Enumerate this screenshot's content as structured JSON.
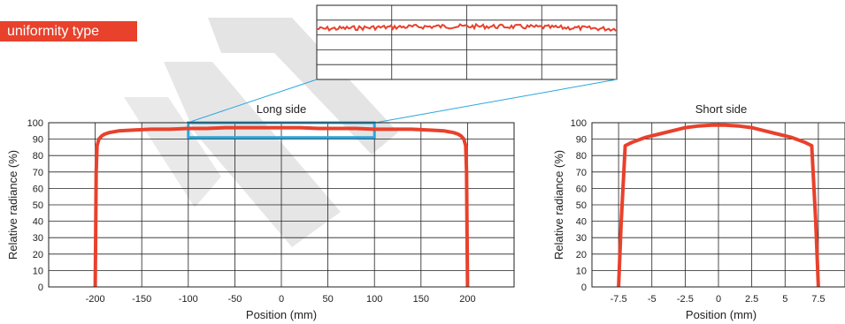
{
  "header": {
    "tag_label": "uniformity type"
  },
  "colors": {
    "curve": "#e8412c",
    "highlight": "#2aa6dc",
    "tag_bg": "#e8412c",
    "watermark": "#d9d9d9"
  },
  "chart_data": [
    {
      "type": "line",
      "title": "Long side",
      "xlabel": "Position (mm)",
      "ylabel": "Relative radiance (%)",
      "xlim": [
        -250,
        250
      ],
      "ylim": [
        0,
        100
      ],
      "xticks": [
        "-200",
        "-150",
        "-100",
        "-50",
        "0",
        "50",
        "100",
        "150",
        "200"
      ],
      "yticks": [
        "0",
        "10",
        "20",
        "30",
        "40",
        "50",
        "60",
        "70",
        "80",
        "90",
        "100"
      ],
      "grid": true,
      "highlight_region": {
        "x": [
          -100,
          100
        ],
        "y": [
          91,
          100
        ]
      },
      "series": [
        {
          "x": [
            -200,
            -199.5,
            -199,
            -198,
            -196,
            -193,
            -190,
            -185,
            -175,
            -160,
            -140,
            -120,
            -100,
            -80,
            -60,
            -40,
            -20,
            0,
            20,
            40,
            60,
            80,
            100,
            120,
            140,
            160,
            175,
            185,
            190,
            193,
            196,
            198,
            199,
            199.5,
            200
          ],
          "y": [
            0,
            30,
            70,
            86,
            90,
            92,
            93,
            94,
            95,
            95.5,
            96,
            96,
            96.5,
            96.5,
            97,
            97,
            97,
            97,
            97,
            96.5,
            96.5,
            96.5,
            96,
            96,
            96,
            95.5,
            95,
            94,
            93,
            92,
            90,
            86,
            70,
            30,
            0
          ]
        }
      ]
    },
    {
      "type": "line",
      "title": "Short side",
      "xlabel": "Position (mm)",
      "ylabel": "Relative radiance (%)",
      "xlim": [
        -9.5,
        9.5
      ],
      "ylim": [
        0,
        100
      ],
      "xticks": [
        "-7.5",
        "-5",
        "-2.5",
        "0",
        "2.5",
        "5",
        "7.5"
      ],
      "yticks": [
        "0",
        "10",
        "20",
        "30",
        "40",
        "50",
        "60",
        "70",
        "80",
        "90",
        "100"
      ],
      "grid": true,
      "series": [
        {
          "x": [
            -7.5,
            -7.3,
            -7.0,
            -6.5,
            -5.5,
            -4.5,
            -3.5,
            -2.5,
            -1.5,
            -0.5,
            0,
            0.5,
            1.5,
            2.5,
            3.5,
            4.5,
            5.5,
            6.5,
            7.0,
            7.3,
            7.5
          ],
          "y": [
            0,
            40,
            86,
            88,
            91,
            93,
            95,
            97,
            98,
            98.5,
            98.5,
            98.5,
            98,
            97,
            95,
            93,
            91,
            88,
            86,
            40,
            0
          ]
        }
      ]
    }
  ],
  "inset": {
    "series": [
      {
        "x": [
          -100,
          100
        ],
        "y": [
          96.5,
          96.5
        ]
      }
    ]
  }
}
